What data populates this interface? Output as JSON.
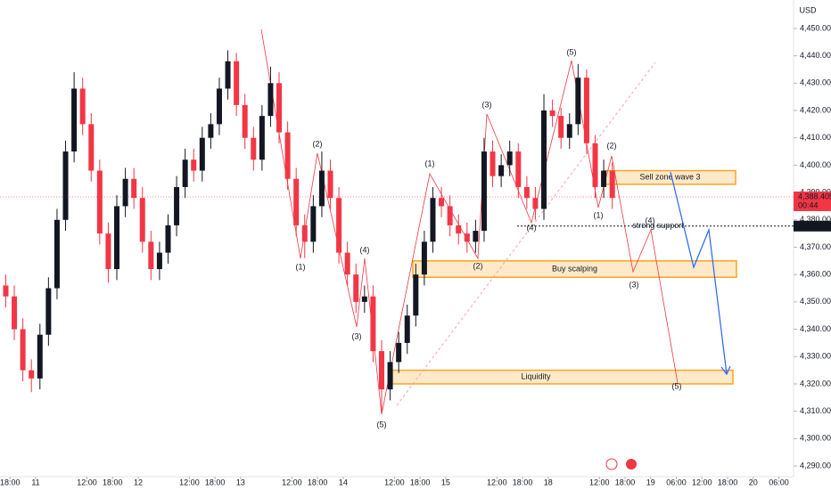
{
  "chart_data": {
    "type": "candlestick",
    "currency": "USD",
    "x": [
      -7,
      -5,
      -3,
      -1,
      1,
      3,
      5,
      7,
      9,
      11,
      13,
      15,
      17,
      19,
      21,
      23,
      25,
      27,
      29,
      31,
      33,
      35,
      37,
      39,
      41,
      43,
      45,
      47,
      49,
      51,
      53,
      55,
      57,
      59,
      61,
      63,
      65,
      67,
      69,
      71,
      73,
      75,
      77,
      79,
      81,
      83,
      85,
      87,
      89,
      91,
      93,
      95,
      97,
      99,
      101,
      103,
      105,
      107,
      109,
      111,
      113,
      115,
      117,
      119,
      121,
      123,
      125,
      127,
      129,
      131,
      133,
      135
    ],
    "open": [
      4356,
      4352,
      4340,
      4325,
      4322,
      4338,
      4355,
      4380,
      4405,
      4428,
      4415,
      4398,
      4375,
      4362,
      4385,
      4395,
      4388,
      4372,
      4362,
      4368,
      4378,
      4392,
      4402,
      4398,
      4410,
      4415,
      4428,
      4438,
      4422,
      4410,
      4402,
      4418,
      4430,
      4412,
      4395,
      4378,
      4372,
      4385,
      4398,
      4388,
      4368,
      4360,
      4350,
      4352,
      4332,
      4318,
      4328,
      4335,
      4345,
      4360,
      4372,
      4388,
      4385,
      4378,
      4375,
      4372,
      4376,
      4405,
      4396,
      4400,
      4405,
      4392,
      4388,
      4384,
      4420,
      4418,
      4410,
      4415,
      4432,
      4408,
      4392,
      4398
    ],
    "high": [
      4360,
      4356,
      4344,
      4329,
      4342,
      4359,
      4384,
      4409,
      4434,
      4432,
      4419,
      4402,
      4379,
      4389,
      4399,
      4399,
      4392,
      4376,
      4372,
      4382,
      4396,
      4406,
      4406,
      4414,
      4419,
      4432,
      4442,
      4441,
      4426,
      4414,
      4422,
      4436,
      4434,
      4416,
      4399,
      4382,
      4389,
      4405,
      4402,
      4392,
      4372,
      4364,
      4356,
      4356,
      4336,
      4332,
      4339,
      4349,
      4364,
      4376,
      4392,
      4392,
      4389,
      4382,
      4379,
      4380,
      4410,
      4409,
      4404,
      4409,
      4408,
      4396,
      4392,
      4426,
      4424,
      4421,
      4419,
      4437,
      4435,
      4411,
      4402,
      4401
    ],
    "low": [
      4348,
      4336,
      4321,
      4317,
      4318,
      4334,
      4351,
      4376,
      4401,
      4411,
      4394,
      4371,
      4357,
      4358,
      4381,
      4384,
      4368,
      4358,
      4358,
      4364,
      4374,
      4388,
      4394,
      4394,
      4406,
      4411,
      4424,
      4418,
      4406,
      4398,
      4398,
      4414,
      4408,
      4391,
      4374,
      4366,
      4368,
      4381,
      4384,
      4364,
      4356,
      4346,
      4346,
      4328,
      4310,
      4314,
      4324,
      4331,
      4341,
      4356,
      4368,
      4381,
      4374,
      4371,
      4368,
      4368,
      4372,
      4392,
      4392,
      4396,
      4388,
      4384,
      4380,
      4380,
      4414,
      4406,
      4406,
      4411,
      4404,
      4388,
      4388,
      4384
    ],
    "close": [
      4352,
      4340,
      4325,
      4322,
      4338,
      4355,
      4380,
      4405,
      4428,
      4415,
      4398,
      4375,
      4362,
      4385,
      4395,
      4388,
      4372,
      4362,
      4368,
      4378,
      4392,
      4402,
      4398,
      4410,
      4415,
      4428,
      4438,
      4422,
      4410,
      4402,
      4418,
      4430,
      4412,
      4395,
      4378,
      4372,
      4385,
      4398,
      4388,
      4368,
      4360,
      4350,
      4352,
      4332,
      4318,
      4328,
      4335,
      4345,
      4360,
      4372,
      4388,
      4385,
      4378,
      4375,
      4372,
      4376,
      4405,
      4396,
      4400,
      4405,
      4392,
      4388,
      4384,
      4420,
      4418,
      4410,
      4415,
      4432,
      4408,
      4392,
      4398,
      4388
    ],
    "up_color": "#131722",
    "down_color": "#f23645",
    "xlim": [
      -8.35,
      177.45
    ],
    "xticks": [
      {
        "value": -6,
        "label": "18:00"
      },
      {
        "value": 0,
        "label": "11"
      },
      {
        "value": 12,
        "label": "12:00"
      },
      {
        "value": 18,
        "label": "18:00"
      },
      {
        "value": 24,
        "label": "12"
      },
      {
        "value": 36,
        "label": "12:00"
      },
      {
        "value": 42,
        "label": "18:00"
      },
      {
        "value": 48,
        "label": "13"
      },
      {
        "value": 60,
        "label": "12:00"
      },
      {
        "value": 66,
        "label": "18:00"
      },
      {
        "value": 72,
        "label": "14"
      },
      {
        "value": 84,
        "label": "12:00"
      },
      {
        "value": 90,
        "label": "18:00"
      },
      {
        "value": 96,
        "label": "15"
      },
      {
        "value": 108,
        "label": "12:00"
      },
      {
        "value": 114,
        "label": "18:00"
      },
      {
        "value": 120,
        "label": "18"
      },
      {
        "value": 132,
        "label": "12:00"
      },
      {
        "value": 138,
        "label": "18:00"
      },
      {
        "value": 144,
        "label": "19"
      },
      {
        "value": 150,
        "label": "06:00"
      },
      {
        "value": 156,
        "label": "12:00"
      },
      {
        "value": 162,
        "label": "18:00"
      },
      {
        "value": 168,
        "label": "20"
      },
      {
        "value": 174,
        "label": "06:00"
      }
    ],
    "ylim": [
      4286.1,
      4460.4
    ],
    "yticks": [
      {
        "value": 4290,
        "label": "4,290.000"
      },
      {
        "value": 4300,
        "label": "4,300.000"
      },
      {
        "value": 4310,
        "label": "4,310.000"
      },
      {
        "value": 4320,
        "label": "4,320.000"
      },
      {
        "value": 4330,
        "label": "4,330.000"
      },
      {
        "value": 4340,
        "label": "4,340.000"
      },
      {
        "value": 4350,
        "label": "4,350.000"
      },
      {
        "value": 4360,
        "label": "4,360.000"
      },
      {
        "value": 4370,
        "label": "4,370.000"
      },
      {
        "value": 4380,
        "label": "4,380.000"
      },
      {
        "value": 4390,
        "label": "4,390.000"
      },
      {
        "value": 4400,
        "label": "4,400.000"
      },
      {
        "value": 4410,
        "label": "4,410.000"
      },
      {
        "value": 4420,
        "label": "4,420.000"
      },
      {
        "value": 4430,
        "label": "4,430.000"
      },
      {
        "value": 4440,
        "label": "4,440.000"
      },
      {
        "value": 4450,
        "label": "4,450.000"
      }
    ],
    "last_price": {
      "value": 4388.405,
      "label": "4,388.405"
    },
    "countdown": "00:44",
    "support": {
      "value": 4377.722,
      "label": "4,377.722",
      "name": "strong support"
    },
    "zones": [
      {
        "label": "Sell zone wave 3",
        "low": 4393,
        "high": 4398
      },
      {
        "label": "Buy scalping",
        "low": 4359,
        "high": 4365
      },
      {
        "label": "Liquidity",
        "low": 4320,
        "high": 4325
      }
    ],
    "wave_labels": [
      "(1)",
      "(2)",
      "(3)",
      "(4)",
      "(5)",
      "(1)",
      "(2)",
      "(3)",
      "(4)",
      "(5)",
      "(1)",
      "(2)",
      "(3)",
      "(4)",
      "(5)"
    ]
  }
}
